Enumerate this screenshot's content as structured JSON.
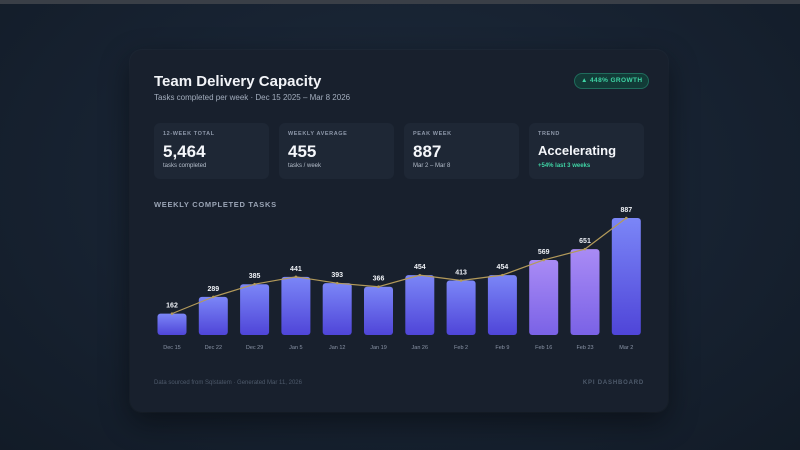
{
  "header": {
    "title": "Team Delivery Capacity",
    "subtitle": "Tasks completed per week · Dec 15 2025 – Mar 8 2026",
    "badge": "▲ 448% GROWTH"
  },
  "kpis": [
    {
      "label": "12-WEEK TOTAL",
      "value": "5,464",
      "sub": "tasks completed"
    },
    {
      "label": "WEEKLY AVERAGE",
      "value": "455",
      "sub": "tasks / week"
    },
    {
      "label": "PEAK WEEK",
      "value": "887",
      "sub": "Mar 2 – Mar 8"
    },
    {
      "label": "TREND",
      "value": "Accelerating",
      "sub": "+54% last 3 weeks"
    }
  ],
  "section_title": "WEEKLY COMPLETED TASKS",
  "footer": {
    "left": "Data sourced from Sqlstatem · Generated Mar 11, 2026",
    "right": "KPI DASHBOARD"
  },
  "colors": {
    "bar_start": "#4f45d8",
    "bar_end": "#7b86f7",
    "bar_highlight_start": "#7a62e6",
    "bar_highlight_end": "#a98bf5",
    "trend_line": "#b39a5a",
    "accent_green": "#3fd3a4"
  },
  "chart_data": {
    "type": "bar",
    "categories": [
      "Dec 15",
      "Dec 22",
      "Dec 29",
      "Jan 5",
      "Jan 12",
      "Jan 19",
      "Jan 26",
      "Feb 2",
      "Feb 9",
      "Feb 16",
      "Feb 23",
      "Mar 2"
    ],
    "values": [
      162,
      289,
      385,
      441,
      393,
      366,
      454,
      413,
      454,
      569,
      651,
      887
    ],
    "title": "WEEKLY COMPLETED TASKS",
    "overlay": "line",
    "highlighted": [
      "Feb 16",
      "Feb 23"
    ],
    "ylim": [
      0,
      887
    ],
    "grid": false,
    "legend": "none"
  }
}
